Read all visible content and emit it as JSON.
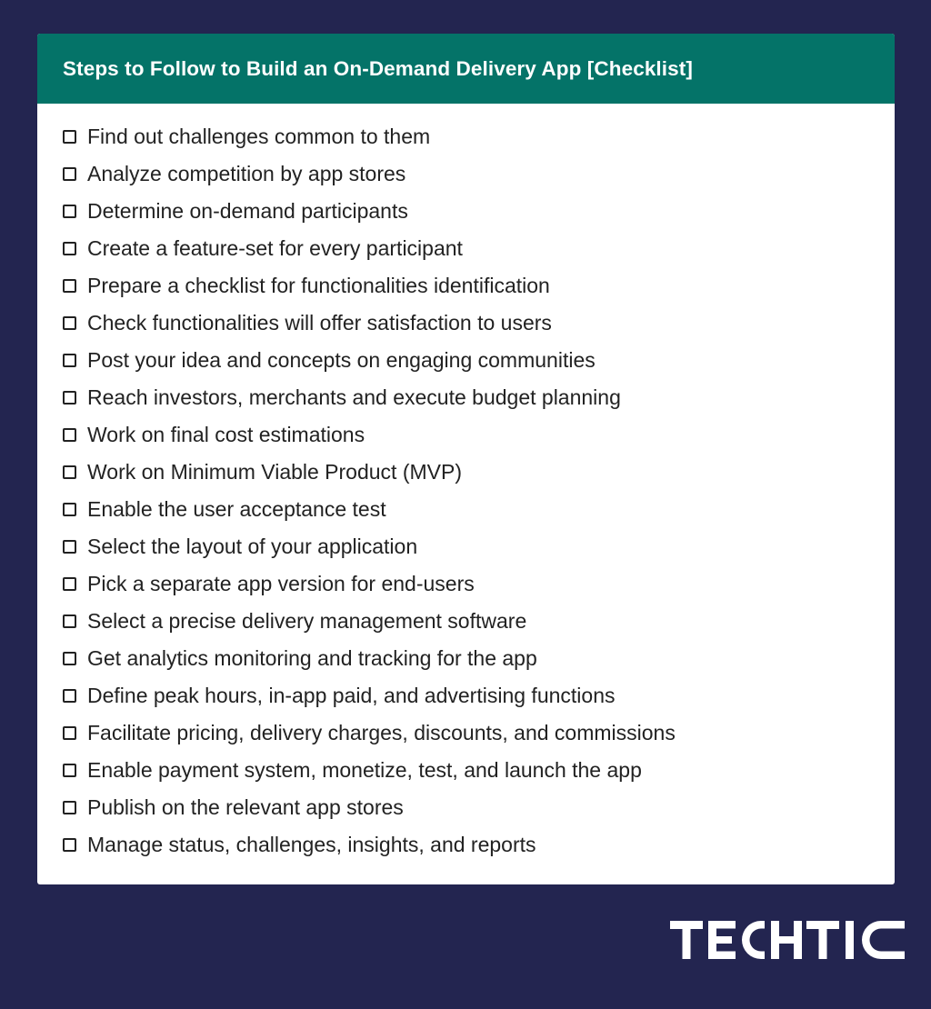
{
  "colors": {
    "background": "#232550",
    "header": "#047368",
    "card": "#ffffff",
    "text": "#222222",
    "logo": "#ffffff"
  },
  "header": {
    "title": "Steps to Follow to Build an On-Demand Delivery App [Checklist]"
  },
  "checklist": {
    "items": [
      "Find out challenges common to them",
      "Analyze competition by app stores",
      "Determine on-demand participants",
      "Create a feature-set for every participant",
      "Prepare a checklist for functionalities identification",
      "Check functionalities will offer satisfaction to users",
      "Post your idea and concepts on engaging communities",
      "Reach investors, merchants and execute budget planning",
      "Work on final cost estimations",
      "Work on Minimum Viable Product (MVP)",
      "Enable the user acceptance test",
      "Select the layout of your application",
      "Pick a separate app version for end-users",
      "Select a precise delivery management software",
      "Get analytics monitoring and tracking for the app",
      "Define peak hours, in-app paid, and advertising functions",
      "Facilitate pricing, delivery charges, discounts, and commissions",
      "Enable payment system, monetize, test, and launch the app",
      "Publish on the relevant app stores",
      "Manage status, challenges, insights, and reports"
    ]
  },
  "brand": {
    "logo_text": "TECHTIC"
  }
}
